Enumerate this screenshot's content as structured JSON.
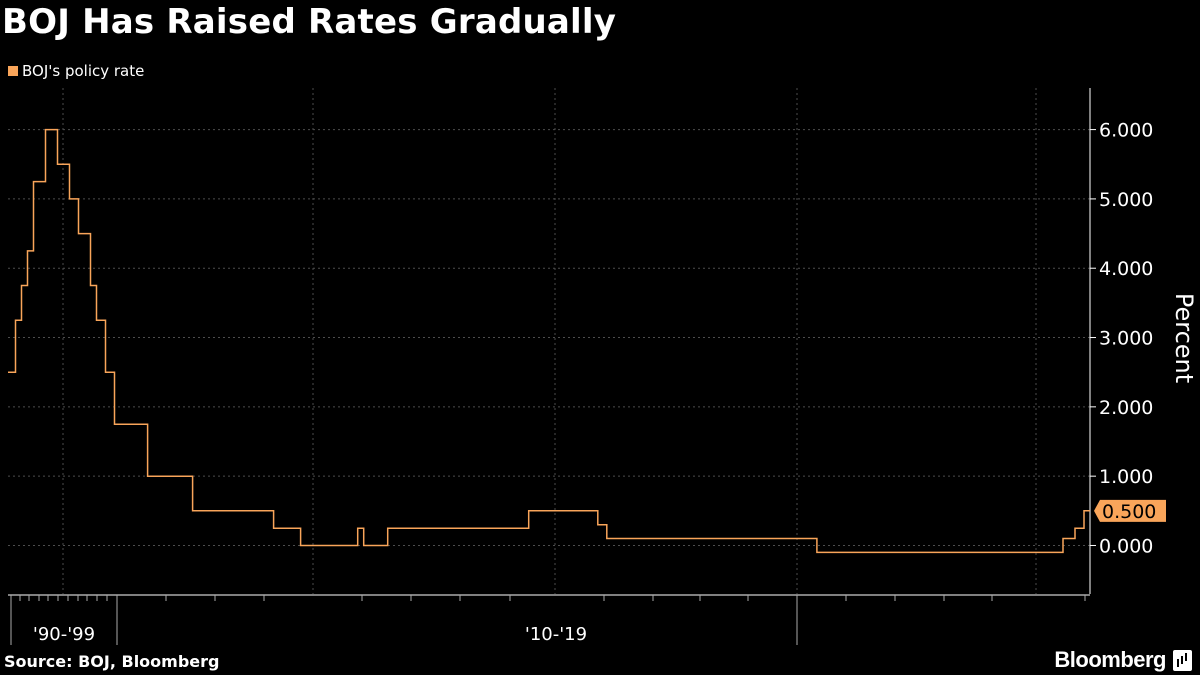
{
  "title": "BOJ Has Raised Rates Gradually",
  "source": "Source: BOJ, Bloomberg",
  "brand": "Bloomberg",
  "colors": {
    "background": "#000000",
    "series": "#F9A55A",
    "grid": "#4d4d4d",
    "text": "#ffffff"
  },
  "chart_data": {
    "type": "line",
    "title": "BOJ Has Raised Rates Gradually",
    "ylabel": "Percent",
    "xlabel": "",
    "ylim": [
      -0.7,
      6.6
    ],
    "xlim": [
      1989.15,
      2025.2
    ],
    "y_ticks": [
      "6.000",
      "5.000",
      "4.000",
      "3.000",
      "2.000",
      "1.000",
      "0.000"
    ],
    "x_tick_labels": [
      "'90-'99",
      "'10-'19"
    ],
    "grid": true,
    "legend": "top-left",
    "last_value_label": "0.500",
    "series": [
      {
        "name": "BOJ's policy rate",
        "color": "#F9A55A",
        "x": [
          1989.15,
          1989.4,
          1989.6,
          1989.8,
          1990.0,
          1990.4,
          1990.8,
          1991.2,
          1991.5,
          1991.9,
          1992.1,
          1992.4,
          1992.7,
          1993.1,
          1993.8,
          1995.3,
          1995.8,
          1998.0,
          1998.9,
          2000.8,
          2001.0,
          2001.2,
          2001.8,
          2002.8,
          2006.5,
          2007.2,
          2008.8,
          2009.1,
          2016.1,
          2023.1,
          2024.3,
          2024.7,
          2025.0,
          2025.2
        ],
        "y": [
          2.5,
          3.25,
          3.75,
          4.25,
          5.25,
          6.0,
          5.5,
          5.0,
          4.5,
          3.75,
          3.25,
          2.5,
          1.75,
          1.75,
          1.0,
          0.5,
          0.5,
          0.25,
          0.0,
          0.25,
          0.0,
          0.0,
          0.25,
          0.25,
          0.5,
          0.5,
          0.3,
          0.1,
          -0.1,
          -0.1,
          0.1,
          0.25,
          0.5,
          0.5
        ]
      }
    ]
  }
}
